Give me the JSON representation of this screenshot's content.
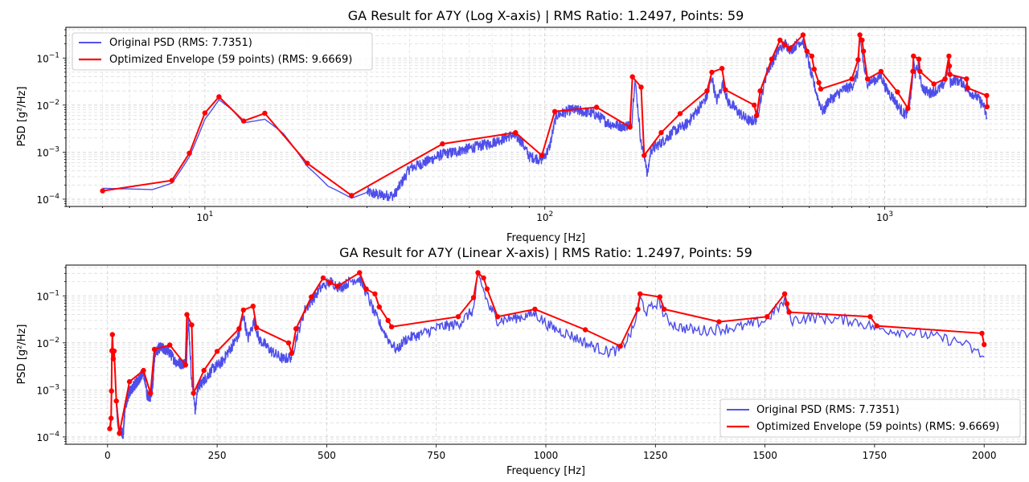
{
  "chart_data": [
    {
      "type": "line",
      "title": "GA Result for A7Y (Log X-axis) | RMS Ratio: 1.2497, Points: 59",
      "xlabel": "Frequency [Hz]",
      "ylabel": "PSD [g²/Hz]",
      "xscale": "log",
      "yscale": "log",
      "xlim": [
        3.9,
        2600
      ],
      "ylim": [
        7e-05,
        0.45
      ],
      "grid": true,
      "legend_position": "top-left",
      "x_ticks": [
        {
          "v": 10,
          "b": "10",
          "e": "1"
        },
        {
          "v": 100,
          "b": "10",
          "e": "2"
        },
        {
          "v": 1000,
          "b": "10",
          "e": "3"
        }
      ],
      "y_ticks": [
        {
          "v": 0.0001,
          "b": "10",
          "e": "−4"
        },
        {
          "v": 0.001,
          "b": "10",
          "e": "−3"
        },
        {
          "v": 0.01,
          "b": "10",
          "e": "−2"
        },
        {
          "v": 0.1,
          "b": "10",
          "e": "−1"
        }
      ],
      "series": [
        {
          "name": "Original PSD (RMS: 7.7351)",
          "color": "#3b3be8",
          "role": "psd"
        },
        {
          "name": "Optimized Envelope (59 points) (RMS: 9.6669)",
          "color": "#ff0000",
          "role": "envelope"
        }
      ]
    },
    {
      "type": "line",
      "title": "GA Result for A7Y (Linear X-axis) | RMS Ratio: 1.2497, Points: 59",
      "xlabel": "Frequency [Hz]",
      "ylabel": "PSD [g²/Hz]",
      "xscale": "linear",
      "yscale": "log",
      "xlim": [
        -95,
        2095
      ],
      "ylim": [
        7e-05,
        0.45
      ],
      "grid": true,
      "legend_position": "bottom-right",
      "x_ticks": [
        {
          "v": 0,
          "label": "0"
        },
        {
          "v": 250,
          "label": "250"
        },
        {
          "v": 500,
          "label": "500"
        },
        {
          "v": 750,
          "label": "750"
        },
        {
          "v": 1000,
          "label": "1000"
        },
        {
          "v": 1250,
          "label": "1250"
        },
        {
          "v": 1500,
          "label": "1500"
        },
        {
          "v": 1750,
          "label": "1750"
        },
        {
          "v": 2000,
          "label": "2000"
        }
      ],
      "y_ticks": [
        {
          "v": 0.0001,
          "b": "10",
          "e": "−4"
        },
        {
          "v": 0.001,
          "b": "10",
          "e": "−3"
        },
        {
          "v": 0.01,
          "b": "10",
          "e": "−2"
        },
        {
          "v": 0.1,
          "b": "10",
          "e": "−1"
        }
      ],
      "series": [
        {
          "name": "Original PSD (RMS: 7.7351)",
          "color": "#3b3be8",
          "role": "psd"
        },
        {
          "name": "Optimized Envelope (59 points) (RMS: 9.6669)",
          "color": "#ff0000",
          "role": "envelope"
        }
      ]
    }
  ],
  "envelope_points": [
    [
      5,
      0.00015
    ],
    [
      8,
      0.00025
    ],
    [
      9,
      0.00095
    ],
    [
      10,
      0.0068
    ],
    [
      11,
      0.015
    ],
    [
      13,
      0.0046
    ],
    [
      15,
      0.0067
    ],
    [
      20,
      0.00058
    ],
    [
      27,
      0.00012
    ],
    [
      50,
      0.0015
    ],
    [
      82,
      0.0026
    ],
    [
      98,
      0.00085
    ],
    [
      107,
      0.0073
    ],
    [
      142,
      0.009
    ],
    [
      178,
      0.0034
    ],
    [
      181,
      0.04
    ],
    [
      192,
      0.024
    ],
    [
      196,
      0.00085
    ],
    [
      220,
      0.0026
    ],
    [
      250,
      0.0066
    ],
    [
      300,
      0.02
    ],
    [
      310,
      0.05
    ],
    [
      332,
      0.06
    ],
    [
      340,
      0.021
    ],
    [
      413,
      0.01
    ],
    [
      420,
      0.006
    ],
    [
      430,
      0.02
    ],
    [
      465,
      0.095
    ],
    [
      492,
      0.24
    ],
    [
      508,
      0.19
    ],
    [
      525,
      0.16
    ],
    [
      575,
      0.31
    ],
    [
      590,
      0.14
    ],
    [
      610,
      0.11
    ],
    [
      620,
      0.058
    ],
    [
      640,
      0.03
    ],
    [
      648,
      0.022
    ],
    [
      800,
      0.036
    ],
    [
      835,
      0.092
    ],
    [
      845,
      0.31
    ],
    [
      858,
      0.24
    ],
    [
      866,
      0.14
    ],
    [
      890,
      0.036
    ],
    [
      975,
      0.052
    ],
    [
      1090,
      0.019
    ],
    [
      1170,
      0.0085
    ],
    [
      1210,
      0.052
    ],
    [
      1215,
      0.11
    ],
    [
      1260,
      0.095
    ],
    [
      1270,
      0.052
    ],
    [
      1395,
      0.028
    ],
    [
      1505,
      0.036
    ],
    [
      1545,
      0.11
    ],
    [
      1550,
      0.068
    ],
    [
      1555,
      0.045
    ],
    [
      1740,
      0.036
    ],
    [
      1755,
      0.023
    ],
    [
      1995,
      0.016
    ],
    [
      2000,
      0.0092
    ]
  ],
  "psd_anchors": [
    [
      5,
      0.00017
    ],
    [
      7,
      0.00016
    ],
    [
      8,
      0.00022
    ],
    [
      9,
      0.0008
    ],
    [
      10,
      0.005
    ],
    [
      11,
      0.013
    ],
    [
      12,
      0.008
    ],
    [
      13,
      0.0042
    ],
    [
      15,
      0.005
    ],
    [
      17,
      0.0025
    ],
    [
      20,
      0.0005
    ],
    [
      23,
      0.00019
    ],
    [
      27,
      0.000105
    ],
    [
      30,
      0.00014
    ],
    [
      33,
      0.00012
    ],
    [
      36,
      0.00012
    ],
    [
      40,
      0.00045
    ],
    [
      50,
      0.0009
    ],
    [
      60,
      0.0012
    ],
    [
      70,
      0.0016
    ],
    [
      80,
      0.0023
    ],
    [
      85,
      0.0018
    ],
    [
      90,
      0.0008
    ],
    [
      98,
      0.0007
    ],
    [
      103,
      0.0012
    ],
    [
      108,
      0.006
    ],
    [
      120,
      0.008
    ],
    [
      140,
      0.0065
    ],
    [
      155,
      0.004
    ],
    [
      170,
      0.0035
    ],
    [
      180,
      0.004
    ],
    [
      184,
      0.035
    ],
    [
      187,
      0.012
    ],
    [
      192,
      0.0015
    ],
    [
      198,
      0.00065
    ],
    [
      200,
      0.0003
    ],
    [
      205,
      0.0011
    ],
    [
      220,
      0.0016
    ],
    [
      240,
      0.0028
    ],
    [
      260,
      0.0038
    ],
    [
      280,
      0.0075
    ],
    [
      300,
      0.015
    ],
    [
      310,
      0.04
    ],
    [
      320,
      0.012
    ],
    [
      335,
      0.03
    ],
    [
      345,
      0.012
    ],
    [
      360,
      0.009
    ],
    [
      375,
      0.0065
    ],
    [
      400,
      0.0045
    ],
    [
      420,
      0.005
    ],
    [
      430,
      0.012
    ],
    [
      450,
      0.05
    ],
    [
      470,
      0.09
    ],
    [
      490,
      0.16
    ],
    [
      510,
      0.2
    ],
    [
      530,
      0.15
    ],
    [
      560,
      0.22
    ],
    [
      575,
      0.23
    ],
    [
      590,
      0.12
    ],
    [
      610,
      0.04
    ],
    [
      640,
      0.012
    ],
    [
      660,
      0.007
    ],
    [
      680,
      0.012
    ],
    [
      720,
      0.016
    ],
    [
      760,
      0.022
    ],
    [
      800,
      0.025
    ],
    [
      835,
      0.05
    ],
    [
      845,
      0.27
    ],
    [
      855,
      0.16
    ],
    [
      870,
      0.06
    ],
    [
      890,
      0.03
    ],
    [
      940,
      0.035
    ],
    [
      975,
      0.042
    ],
    [
      1010,
      0.022
    ],
    [
      1060,
      0.014
    ],
    [
      1100,
      0.009
    ],
    [
      1140,
      0.0065
    ],
    [
      1170,
      0.007
    ],
    [
      1200,
      0.02
    ],
    [
      1215,
      0.09
    ],
    [
      1230,
      0.045
    ],
    [
      1260,
      0.08
    ],
    [
      1270,
      0.035
    ],
    [
      1300,
      0.022
    ],
    [
      1350,
      0.018
    ],
    [
      1400,
      0.02
    ],
    [
      1450,
      0.022
    ],
    [
      1500,
      0.03
    ],
    [
      1545,
      0.075
    ],
    [
      1560,
      0.03
    ],
    [
      1600,
      0.035
    ],
    [
      1700,
      0.03
    ],
    [
      1760,
      0.02
    ],
    [
      1850,
      0.016
    ],
    [
      1950,
      0.01
    ],
    [
      2000,
      0.005
    ]
  ]
}
